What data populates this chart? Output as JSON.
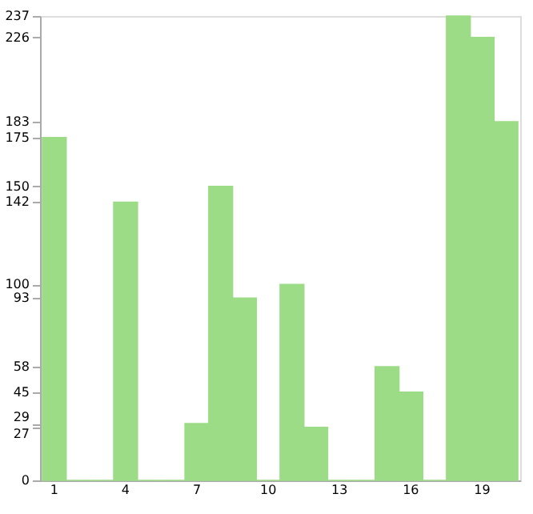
{
  "chart_data": {
    "type": "bar",
    "categories": [
      "1",
      null,
      null,
      "4",
      null,
      null,
      "7",
      null,
      null,
      "10",
      null,
      null,
      "13",
      null,
      null,
      "16",
      null,
      null,
      "19",
      null
    ],
    "values": [
      175,
      0,
      0,
      142,
      0,
      0,
      29,
      150,
      93,
      0,
      100,
      27,
      0,
      0,
      58,
      45,
      0,
      237,
      226,
      183
    ],
    "color": "#9ddc86",
    "ylim": [
      0,
      237
    ],
    "yticks": [
      0,
      27,
      29,
      45,
      58,
      93,
      100,
      142,
      150,
      175,
      183,
      226,
      237
    ],
    "grid": false
  }
}
